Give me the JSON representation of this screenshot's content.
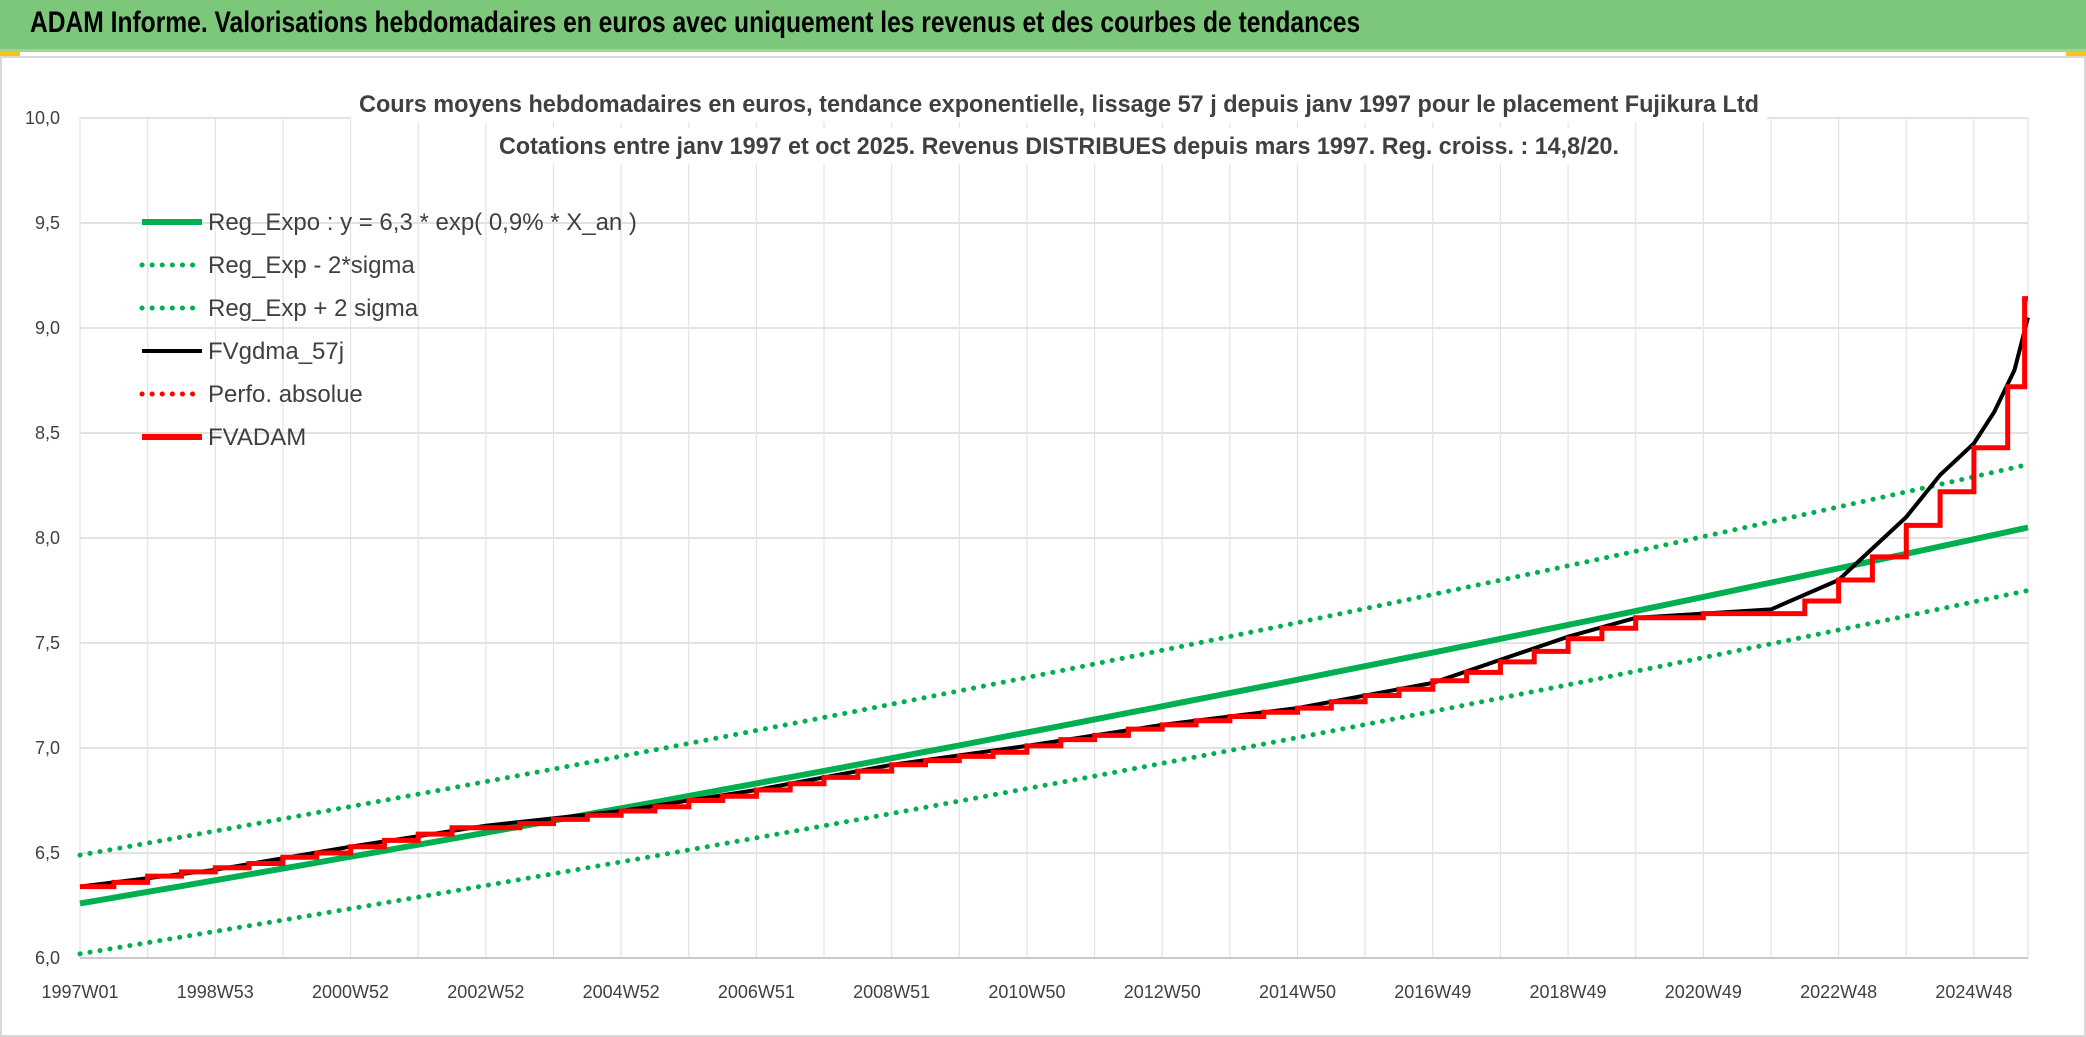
{
  "header": {
    "title": "ADAM Informe. Valorisations hebdomadaires en euros avec uniquement les revenus et des courbes de tendances"
  },
  "colors": {
    "header_bg": "#7dc77b",
    "green": "#00b050",
    "red": "#ff0000",
    "black": "#000000"
  },
  "chart_data": {
    "type": "line",
    "title_lines": [
      "Cours moyens hebdomadaires en euros, tendance exponentielle, lissage 57 j depuis janv 1997 pour le placement Fujikura Ltd",
      "Cotations entre janv 1997 et oct 2025. Revenus DISTRIBUES depuis mars 1997. Reg. croiss. : 14,8/20."
    ],
    "ylim": [
      6.0,
      10.0
    ],
    "xlim": [
      1997.0,
      2025.8
    ],
    "y_ticks": [
      {
        "v": 6.0,
        "label": "6,0"
      },
      {
        "v": 6.5,
        "label": "6,5"
      },
      {
        "v": 7.0,
        "label": "7,0"
      },
      {
        "v": 7.5,
        "label": "7,5"
      },
      {
        "v": 8.0,
        "label": "8,0"
      },
      {
        "v": 8.5,
        "label": "8,5"
      },
      {
        "v": 9.0,
        "label": "9,0"
      },
      {
        "v": 9.5,
        "label": "9,5"
      },
      {
        "v": 10.0,
        "label": "10,0"
      }
    ],
    "x_ticks": [
      {
        "t": 1997.0,
        "label": "1997W01"
      },
      {
        "t": 1999.0,
        "label": "1998W53"
      },
      {
        "t": 2001.0,
        "label": "2000W52"
      },
      {
        "t": 2003.0,
        "label": "2002W52"
      },
      {
        "t": 2005.0,
        "label": "2004W52"
      },
      {
        "t": 2007.0,
        "label": "2006W51"
      },
      {
        "t": 2009.0,
        "label": "2008W51"
      },
      {
        "t": 2011.0,
        "label": "2010W50"
      },
      {
        "t": 2013.0,
        "label": "2012W50"
      },
      {
        "t": 2015.0,
        "label": "2014W50"
      },
      {
        "t": 2017.0,
        "label": "2016W49"
      },
      {
        "t": 2019.0,
        "label": "2018W49"
      },
      {
        "t": 2021.0,
        "label": "2020W49"
      },
      {
        "t": 2023.0,
        "label": "2022W48"
      },
      {
        "t": 2025.0,
        "label": "2024W48"
      }
    ],
    "legend": {
      "placement": "top-left",
      "entries": [
        {
          "label": "Reg_Expo : y = 6,3 * exp( 0,9% *  X_an )",
          "color": "#00b050",
          "style": "solid"
        },
        {
          "label": "Reg_Exp - 2*sigma",
          "color": "#00b050",
          "style": "dotted"
        },
        {
          "label": "Reg_Exp + 2 sigma",
          "color": "#00b050",
          "style": "dotted"
        },
        {
          "label": "FVgdma_57j",
          "color": "#000000",
          "style": "solid"
        },
        {
          "label": "Perfo. absolue",
          "color": "#ff0000",
          "style": "dotted"
        },
        {
          "label": "FVADAM",
          "color": "#ff0000",
          "style": "solid"
        }
      ]
    },
    "series": [
      {
        "name": "Reg_Expo : y = 6,3 * exp( 0,9% *  X_an )",
        "color": "#00b050",
        "style": "solid",
        "x": [
          1997.0,
          2025.8
        ],
        "y": [
          6.26,
          8.05
        ]
      },
      {
        "name": "Reg_Exp - 2*sigma",
        "color": "#00b050",
        "style": "dotted",
        "x": [
          1997.0,
          2025.8
        ],
        "y": [
          6.02,
          7.75
        ]
      },
      {
        "name": "Reg_Exp + 2 sigma",
        "color": "#00b050",
        "style": "dotted",
        "x": [
          1997.0,
          2025.8
        ],
        "y": [
          6.49,
          8.35
        ]
      },
      {
        "name": "FVgdma_57j",
        "color": "#000000",
        "style": "solid",
        "x": [
          1997.0,
          1999.0,
          2001.0,
          2003.0,
          2005.0,
          2007.0,
          2009.0,
          2011.0,
          2013.0,
          2015.0,
          2017.0,
          2019.0,
          2020.0,
          2021.0,
          2022.0,
          2023.0,
          2023.5,
          2024.0,
          2024.5,
          2025.0,
          2025.3,
          2025.6,
          2025.8
        ],
        "y": [
          6.34,
          6.42,
          6.53,
          6.63,
          6.7,
          6.8,
          6.92,
          7.01,
          7.11,
          7.19,
          7.31,
          7.53,
          7.62,
          7.64,
          7.66,
          7.8,
          7.95,
          8.1,
          8.3,
          8.45,
          8.6,
          8.8,
          9.05
        ]
      },
      {
        "name": "FVADAM",
        "color": "#ff0000",
        "style": "step",
        "x": [
          1997.0,
          1997.5,
          1998.0,
          1998.5,
          1999.0,
          1999.5,
          2000.0,
          2000.5,
          2001.0,
          2001.5,
          2002.0,
          2002.5,
          2003.0,
          2003.5,
          2004.0,
          2004.5,
          2005.0,
          2005.5,
          2006.0,
          2006.5,
          2007.0,
          2007.5,
          2008.0,
          2008.5,
          2009.0,
          2009.5,
          2010.0,
          2010.5,
          2011.0,
          2011.5,
          2012.0,
          2012.5,
          2013.0,
          2013.5,
          2014.0,
          2014.5,
          2015.0,
          2015.5,
          2016.0,
          2016.5,
          2017.0,
          2017.5,
          2018.0,
          2018.5,
          2019.0,
          2019.5,
          2020.0,
          2021.0,
          2022.0,
          2022.5,
          2023.0,
          2023.5,
          2024.0,
          2024.5,
          2025.0,
          2025.5,
          2025.75
        ],
        "y": [
          6.34,
          6.36,
          6.39,
          6.41,
          6.43,
          6.45,
          6.48,
          6.5,
          6.53,
          6.56,
          6.59,
          6.62,
          6.62,
          6.64,
          6.66,
          6.68,
          6.7,
          6.72,
          6.75,
          6.77,
          6.8,
          6.83,
          6.86,
          6.89,
          6.92,
          6.94,
          6.96,
          6.98,
          7.01,
          7.04,
          7.06,
          7.09,
          7.11,
          7.13,
          7.15,
          7.17,
          7.19,
          7.22,
          7.25,
          7.28,
          7.32,
          7.36,
          7.41,
          7.46,
          7.52,
          7.57,
          7.62,
          7.64,
          7.64,
          7.7,
          7.8,
          7.91,
          8.06,
          8.22,
          8.43,
          8.72,
          9.14
        ]
      }
    ]
  }
}
